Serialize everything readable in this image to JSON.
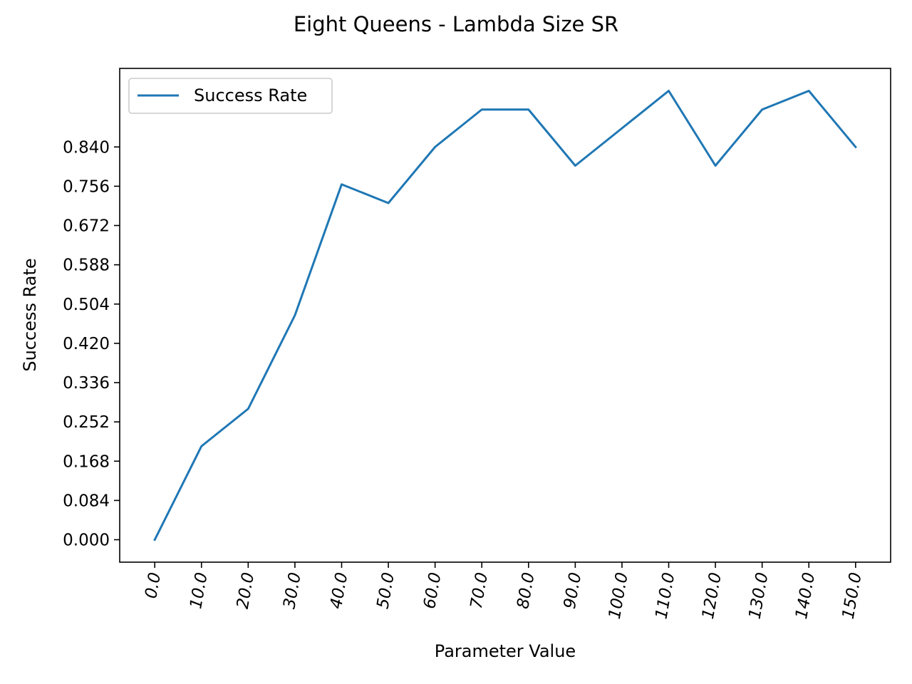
{
  "chart_data": {
    "type": "line",
    "title": "Eight Queens - Lambda Size SR",
    "xlabel": "Parameter Value",
    "ylabel": "Success Rate",
    "x": [
      0,
      10,
      20,
      30,
      40,
      50,
      60,
      70,
      80,
      90,
      100,
      110,
      120,
      130,
      140,
      150
    ],
    "x_tick_labels": [
      "0.0",
      "10.0",
      "20.0",
      "30.0",
      "40.0",
      "50.0",
      "60.0",
      "70.0",
      "80.0",
      "90.0",
      "100.0",
      "110.0",
      "120.0",
      "130.0",
      "140.0",
      "150.0"
    ],
    "y_ticks": [
      0.0,
      0.084,
      0.168,
      0.252,
      0.336,
      0.42,
      0.504,
      0.588,
      0.672,
      0.756,
      0.84
    ],
    "y_tick_labels": [
      "0.000",
      "0.084",
      "0.168",
      "0.252",
      "0.336",
      "0.420",
      "0.504",
      "0.588",
      "0.672",
      "0.756",
      "0.840"
    ],
    "xlim": [
      -7.5,
      157.5
    ],
    "ylim": [
      -0.048,
      1.008
    ],
    "series": [
      {
        "name": "Success Rate",
        "color": "#1f77b4",
        "values": [
          0.0,
          0.2,
          0.28,
          0.48,
          0.76,
          0.72,
          0.84,
          0.92,
          0.92,
          0.8,
          0.88,
          0.96,
          0.8,
          0.92,
          0.96,
          0.84
        ]
      }
    ],
    "legend": {
      "position": "top-left",
      "entries": [
        "Success Rate"
      ]
    },
    "grid": false
  }
}
